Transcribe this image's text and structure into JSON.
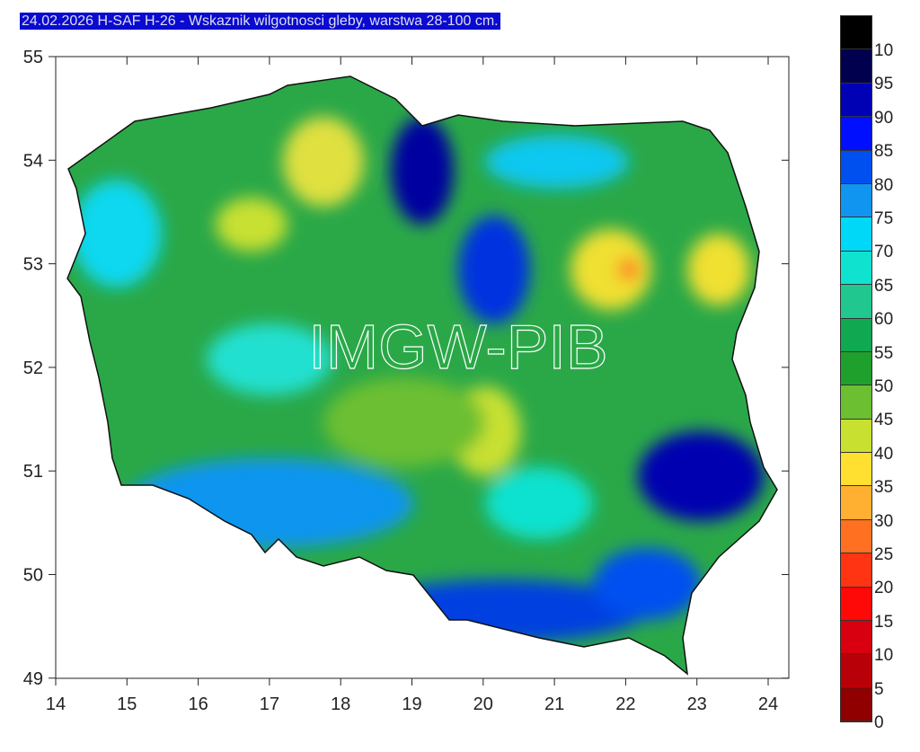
{
  "title": "24.02.2026 H-SAF H-26 - Wskaznik wilgotnosci gleby, warstwa 28-100 cm.",
  "watermark": "IMGW-PIB",
  "x_ticks": [
    "14",
    "15",
    "16",
    "17",
    "18",
    "19",
    "20",
    "21",
    "22",
    "23",
    "24"
  ],
  "y_ticks": [
    "55",
    "54",
    "53",
    "52",
    "51",
    "50",
    "49"
  ],
  "legend": {
    "labels": [
      "10",
      "95",
      "90",
      "85",
      "80",
      "75",
      "70",
      "65",
      "60",
      "55",
      "50",
      "45",
      "40",
      "35",
      "30",
      "25",
      "20",
      "15",
      "10",
      "5",
      "0"
    ],
    "colors": [
      "#000000",
      "#00004e",
      "#0000b4",
      "#0010ff",
      "#0050f0",
      "#1095f0",
      "#00d8f8",
      "#10e2d0",
      "#20c890",
      "#10a850",
      "#1f9f2c",
      "#6cbf30",
      "#c8e030",
      "#ffe030",
      "#ffb030",
      "#ff7020",
      "#ff3412",
      "#ff0808",
      "#d80010",
      "#b80008",
      "#900000"
    ]
  }
}
